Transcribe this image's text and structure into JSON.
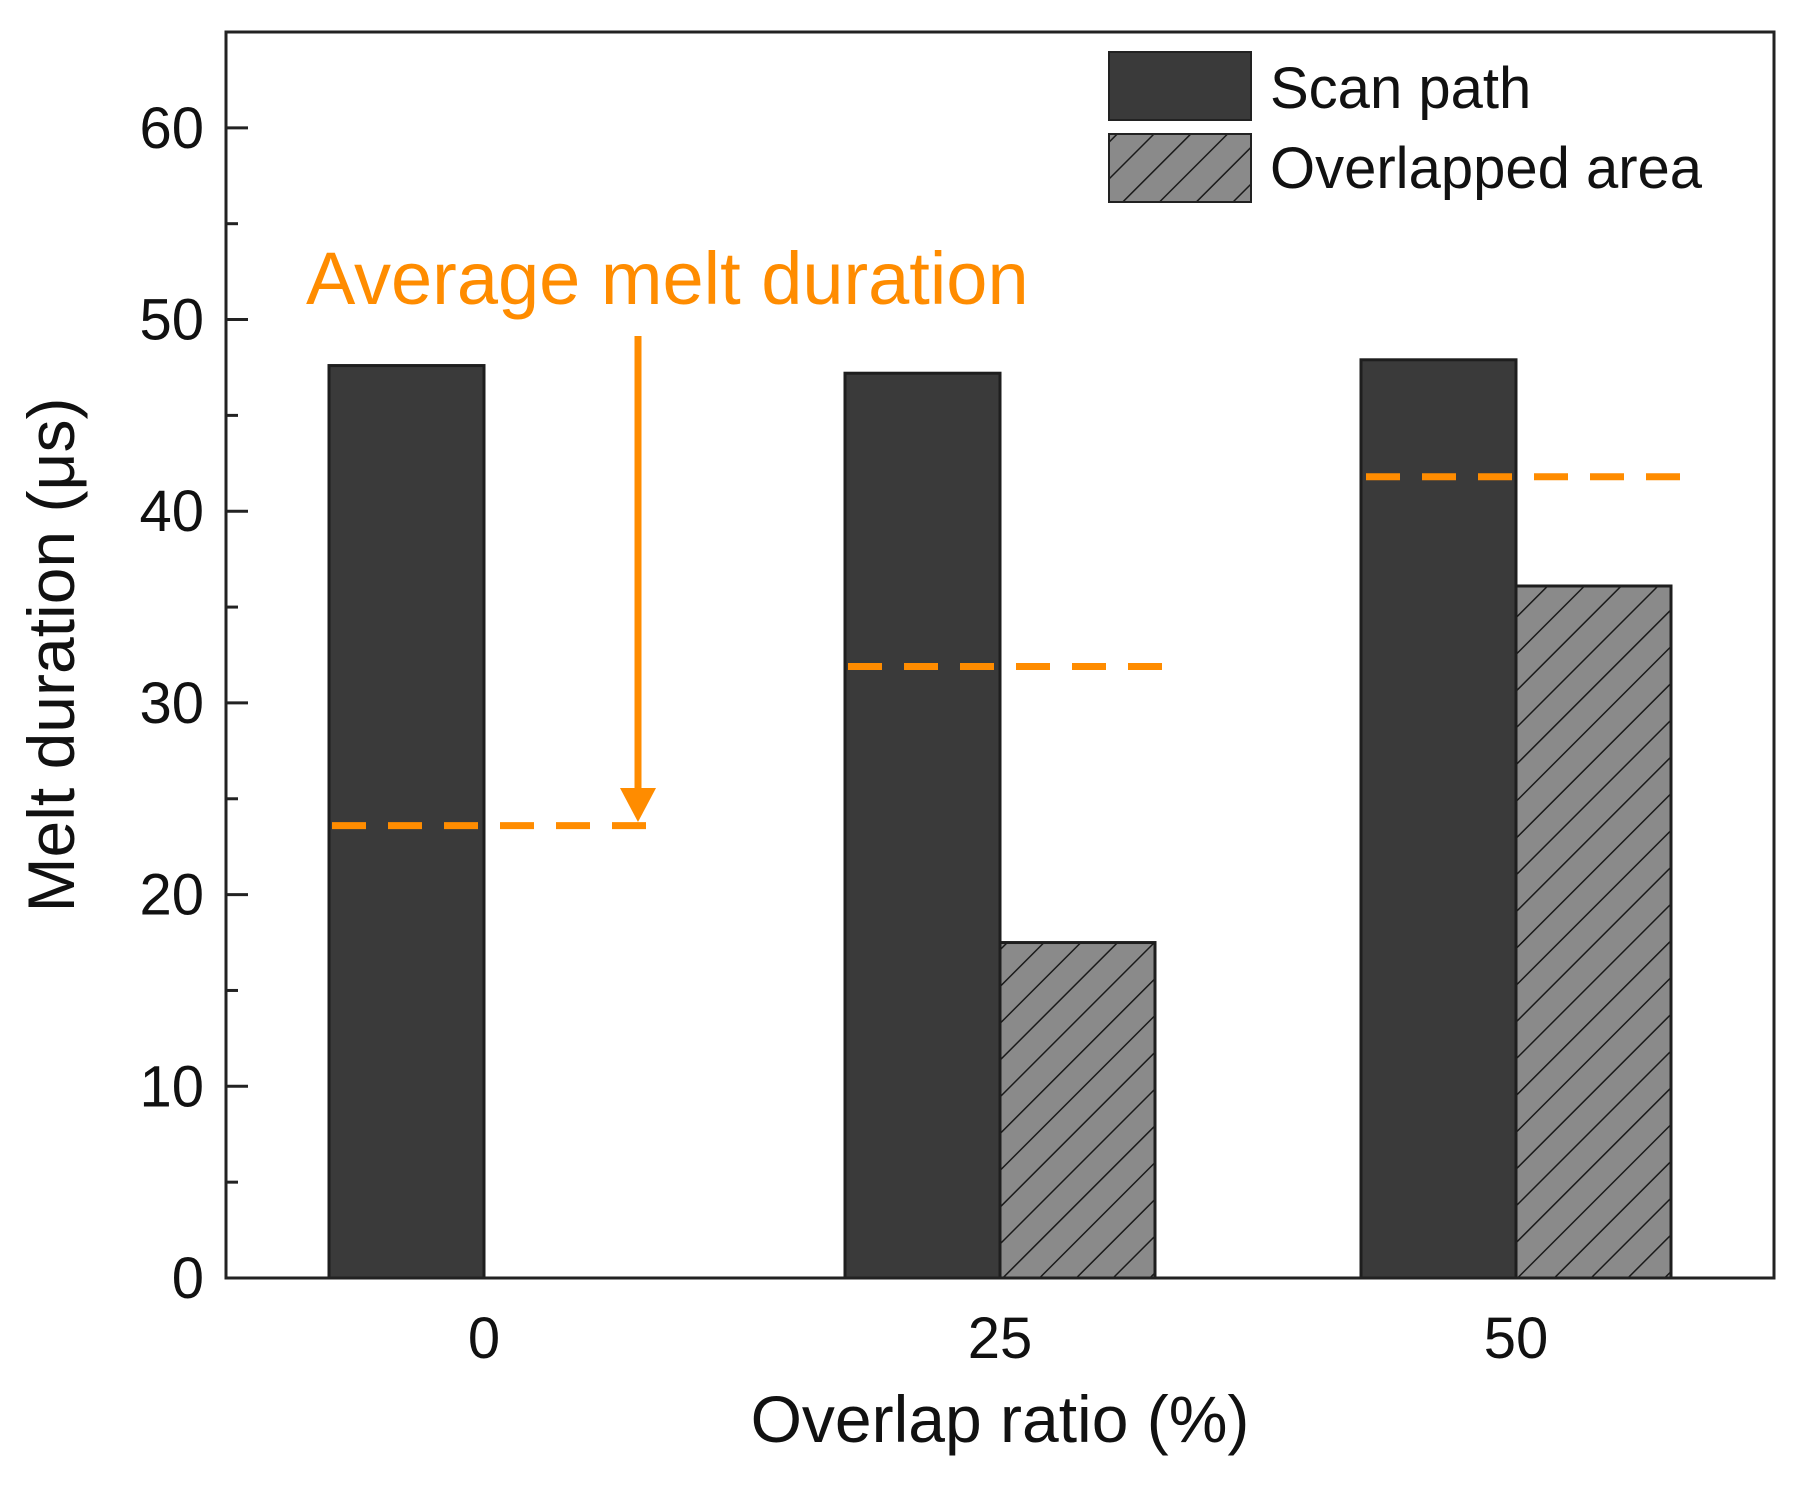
{
  "chart_data": {
    "type": "bar",
    "title": "",
    "xlabel": "Overlap ratio (%)",
    "ylabel": "Melt duration (μs)",
    "ylim": [
      0,
      65
    ],
    "yticks": [
      0,
      10,
      20,
      30,
      40,
      50,
      60
    ],
    "categories": [
      "0",
      "25",
      "50"
    ],
    "series": [
      {
        "name": "Scan path",
        "values": [
          47.6,
          47.2,
          47.9
        ],
        "color": "#3a3a3a",
        "pattern": "solid"
      },
      {
        "name": "Overlapped area",
        "values": [
          0,
          17.5,
          36.1
        ],
        "color": "#8a8a8a",
        "pattern": "hatch"
      }
    ],
    "average_lines": [
      {
        "category": "0",
        "value": 23.6
      },
      {
        "category": "25",
        "value": 31.9
      },
      {
        "category": "50",
        "value": 41.8
      }
    ],
    "annotation": {
      "text": "Average melt duration",
      "color": "#ff8c00"
    },
    "legend_position": "top-right"
  }
}
